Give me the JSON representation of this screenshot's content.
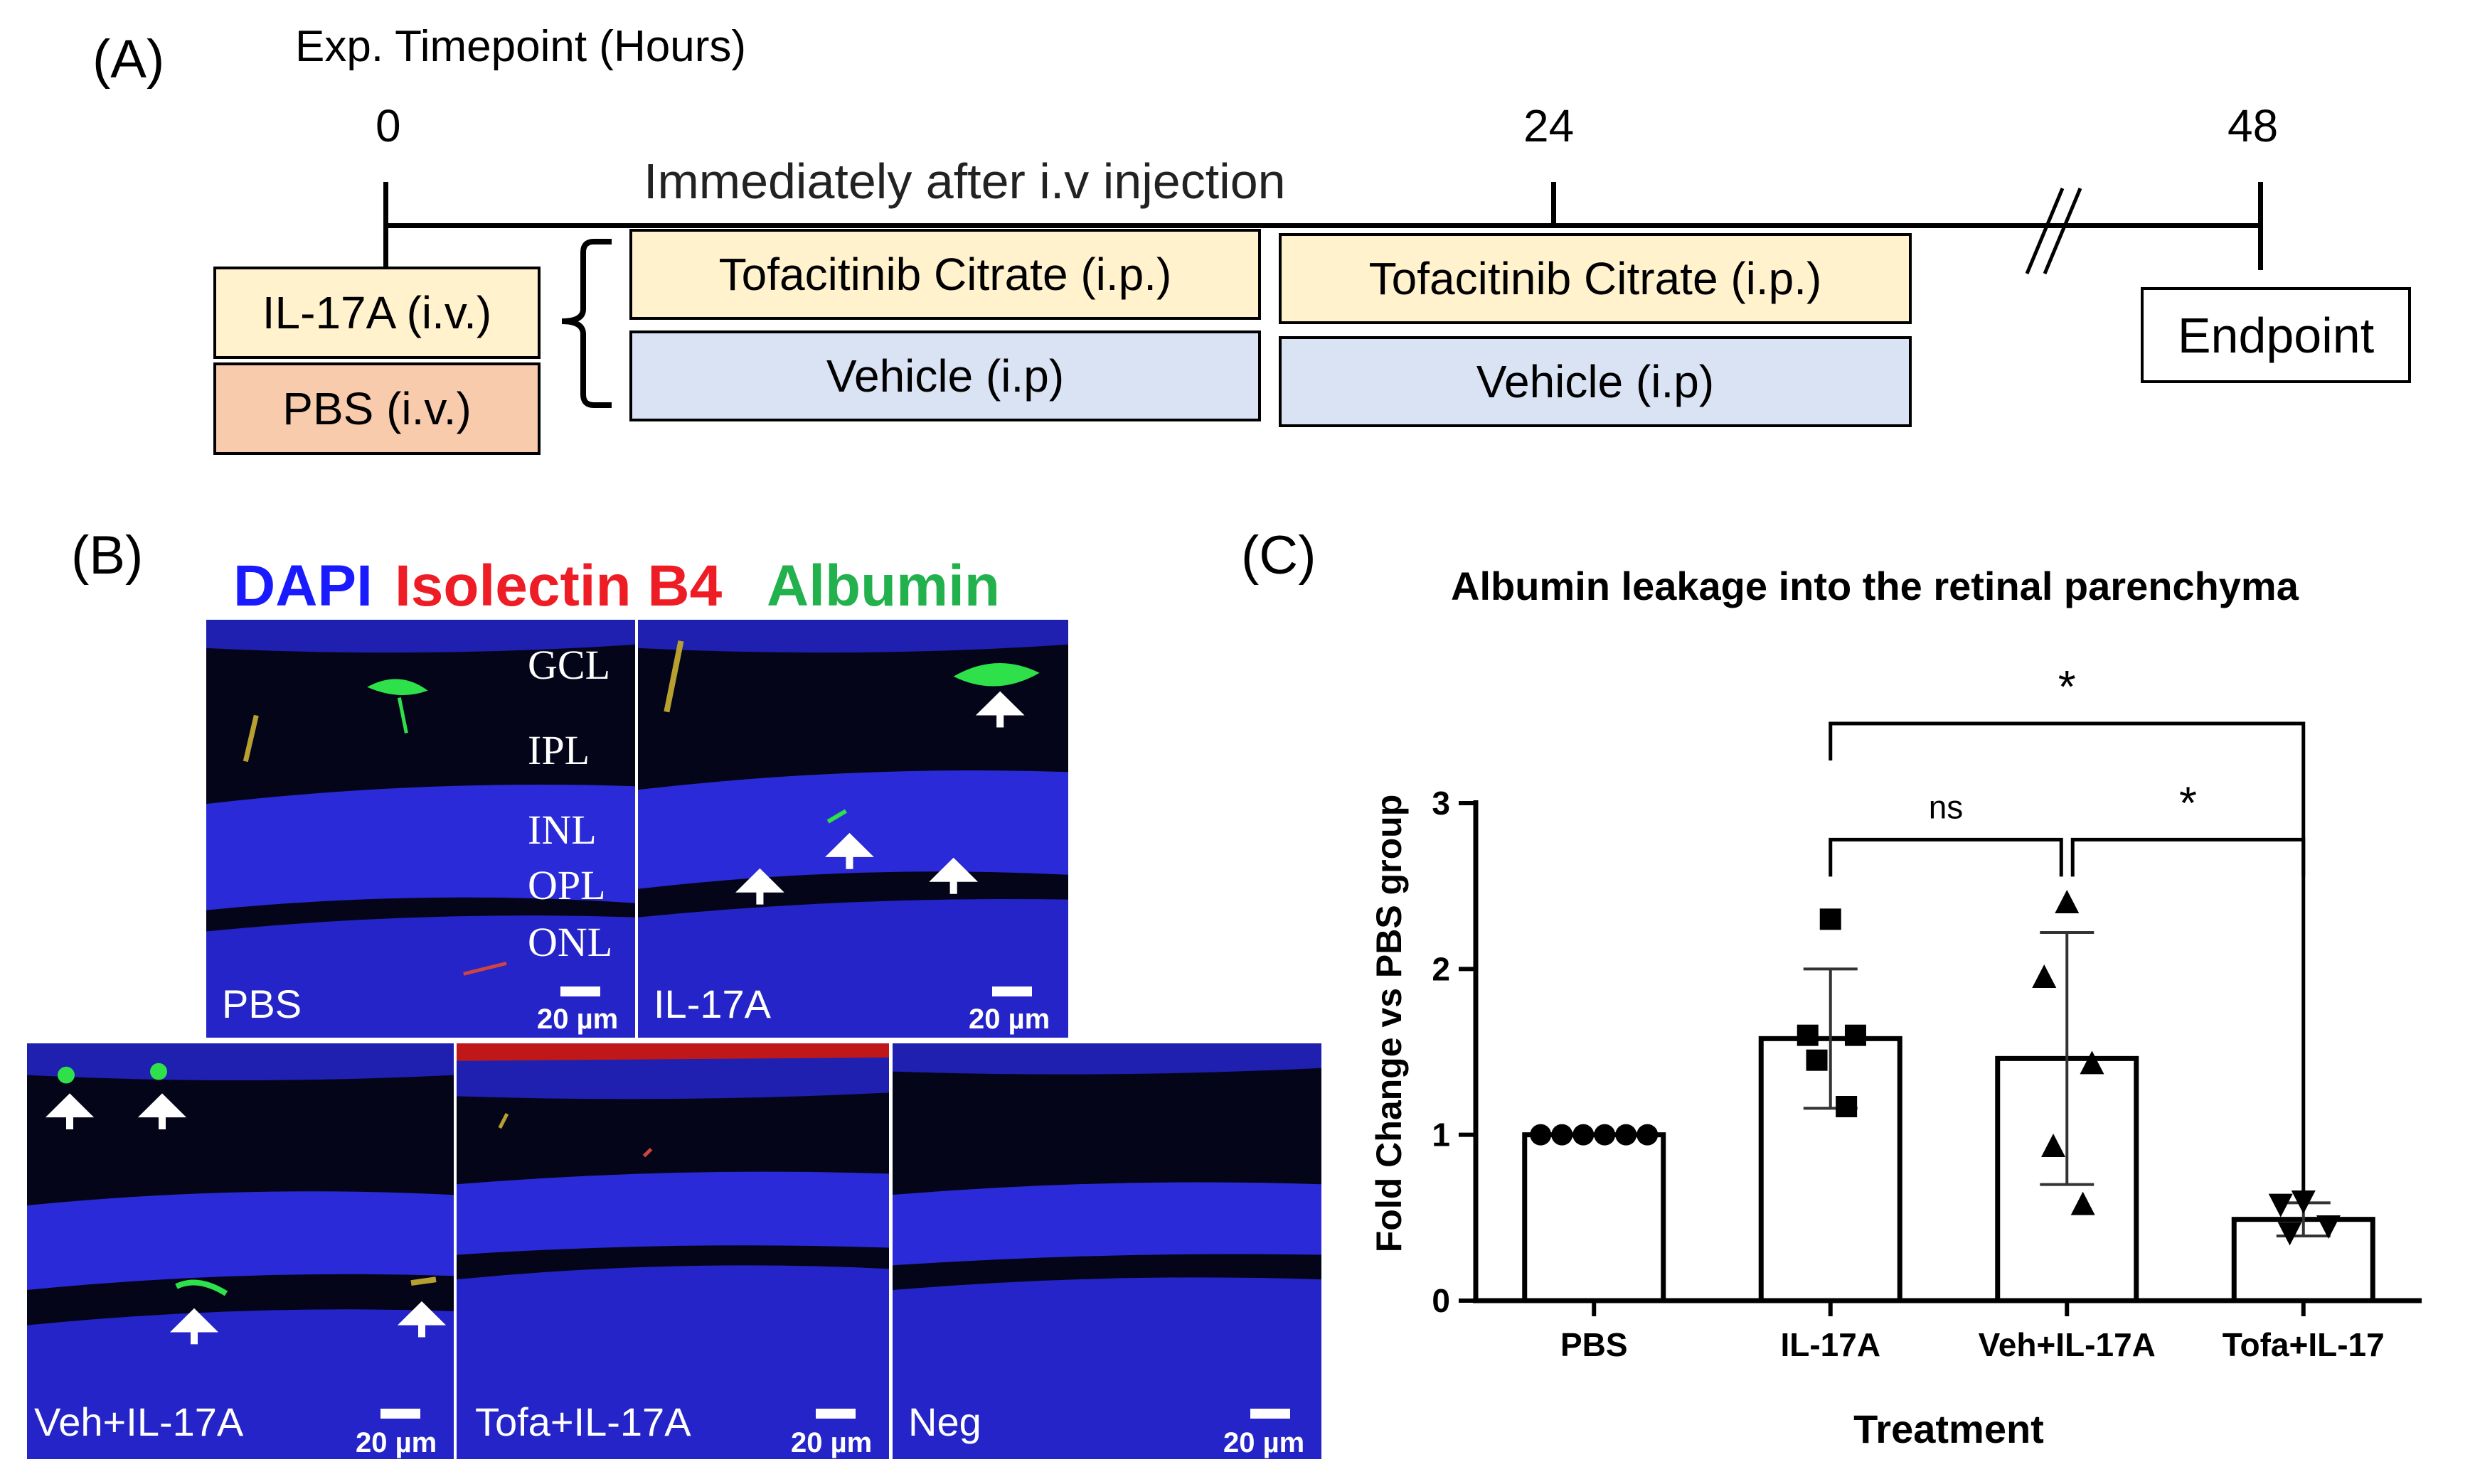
{
  "panel_a": {
    "letter": "(A)",
    "axis_title": "Exp. Timepoint (Hours)",
    "ticks": [
      "0",
      "24",
      "48"
    ],
    "note": "Immediately after i.v injection",
    "il17a_box": "IL-17A (i.v.)",
    "pbs_box": "PBS (i.v.)",
    "tofa_box_1": "Tofacitinib Citrate (i.p.)",
    "tofa_box_2": "Tofacitinib Citrate (i.p.)",
    "veh_box_1": "Vehicle (i.p)",
    "veh_box_2": "Vehicle (i.p)",
    "endpoint": "Endpoint",
    "colors": {
      "yellow": "#fff2cc",
      "salmon": "#f8cbad",
      "blue": "#dae3f3"
    }
  },
  "panel_b": {
    "letter": "(B)",
    "stain_dapi": "DAPI",
    "stain_isolectin": "Isolectin B4",
    "stain_albumin": "Albumin",
    "stain_colors": {
      "dapi": "#1a1aff",
      "isolectin": "#ee1c24",
      "albumin": "#22b14c"
    },
    "layers": [
      "GCL",
      "IPL",
      "INL",
      "OPL",
      "ONL"
    ],
    "scale_label": "20 µm",
    "images": [
      "PBS",
      "IL-17A",
      "Veh+IL-17A",
      "Tofa+IL-17A",
      "Neg"
    ]
  },
  "panel_c": {
    "letter": "(C)"
  },
  "chart_data": {
    "type": "bar",
    "title": "Albumin leakage into the retinal parenchyma",
    "xlabel": "Treatment",
    "ylabel": "Fold Change vs PBS group",
    "ylim": [
      0,
      3
    ],
    "yticks": [
      "0",
      "1",
      "2",
      "3"
    ],
    "categories": [
      "PBS",
      "IL-17A",
      "Veh+IL-17A",
      "Tofa+IL-17"
    ],
    "values": [
      1.0,
      1.58,
      1.46,
      0.49
    ],
    "sd": [
      0.0,
      0.42,
      0.76,
      0.1
    ],
    "markers": [
      "circle",
      "square",
      "triangle-up",
      "triangle-down"
    ],
    "points": [
      [
        1.0,
        1.0,
        1.0,
        1.0,
        1.0,
        1.0
      ],
      [
        2.3,
        1.6,
        1.6,
        1.45,
        1.17
      ],
      [
        2.4,
        1.95,
        1.43,
        0.93,
        0.58
      ],
      [
        0.6,
        0.58,
        0.45,
        0.41
      ]
    ],
    "comparisons": [
      {
        "from": "IL-17A",
        "to": "Veh+IL-17A",
        "label": "ns"
      },
      {
        "from": "Veh+IL-17A",
        "to": "Tofa+IL-17",
        "label": "*"
      },
      {
        "from": "IL-17A",
        "to": "Tofa+IL-17",
        "label": "*"
      }
    ]
  }
}
